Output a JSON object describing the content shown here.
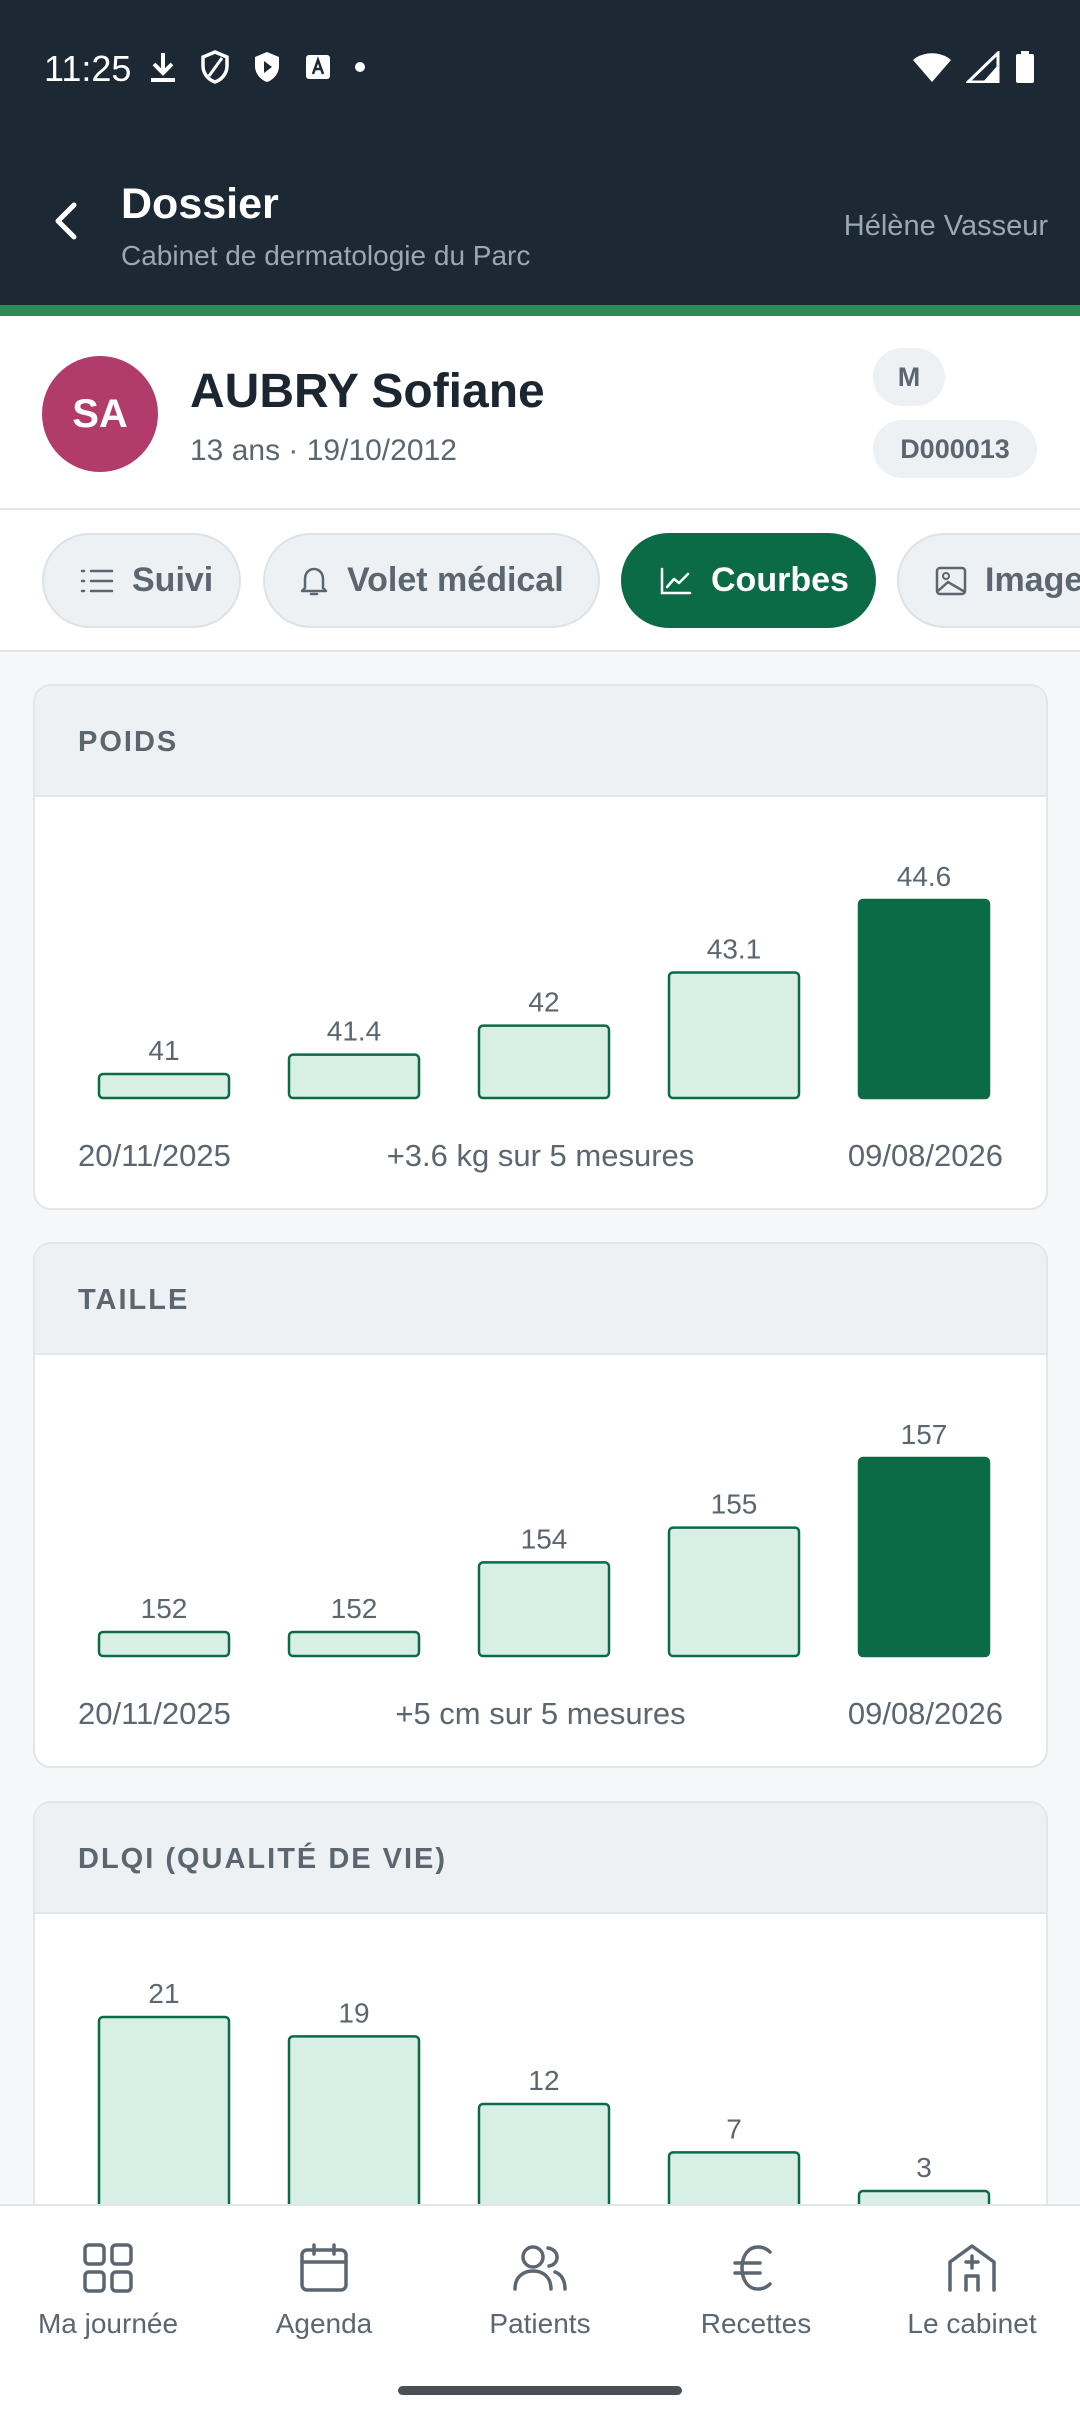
{
  "status_bar": {
    "time": "11:25"
  },
  "app_bar": {
    "title": "Dossier",
    "subtitle": "Cabinet de dermatologie du Parc",
    "user": "Hélène Vasseur"
  },
  "patient": {
    "initials": "SA",
    "name": "AUBRY Sofiane",
    "meta": "13 ans · 19/10/2012",
    "sex": "M",
    "id": "D000013",
    "avatar_color": "#b13b6b"
  },
  "tabs": [
    {
      "label": "Suivi",
      "icon": "list-icon",
      "active": false
    },
    {
      "label": "Volet médical",
      "icon": "bell-icon",
      "active": false
    },
    {
      "label": "Courbes",
      "icon": "chart-line-icon",
      "active": true
    },
    {
      "label": "Images",
      "icon": "image-icon",
      "active": false
    }
  ],
  "colors": {
    "accent": "#0b6b47",
    "bar_light": "#d8efe5",
    "bar_border": "#0b6b47"
  },
  "chart_data": [
    {
      "type": "bar",
      "title": "POIDS",
      "categories": [
        "20/11/2025",
        "",
        "",
        "",
        "09/08/2026"
      ],
      "values": [
        41,
        41.4,
        42,
        43.1,
        44.6
      ],
      "start_label": "20/11/2025",
      "summary": "+3.6 kg sur 5 mesures",
      "end_label": "09/08/2026"
    },
    {
      "type": "bar",
      "title": "TAILLE",
      "categories": [
        "20/11/2025",
        "",
        "",
        "",
        "09/08/2026"
      ],
      "values": [
        152,
        152,
        154,
        155,
        157
      ],
      "start_label": "20/11/2025",
      "summary": "+5 cm sur 5 mesures",
      "end_label": "09/08/2026"
    },
    {
      "type": "bar",
      "title": "DLQI (QUALITÉ DE VIE)",
      "values": [
        21,
        19,
        12,
        7,
        3
      ]
    }
  ],
  "bottom_nav": [
    {
      "label": "Ma journée",
      "icon": "grid-icon"
    },
    {
      "label": "Agenda",
      "icon": "calendar-icon"
    },
    {
      "label": "Patients",
      "icon": "users-icon"
    },
    {
      "label": "Recettes",
      "icon": "euro-icon"
    },
    {
      "label": "Le cabinet",
      "icon": "building-icon"
    }
  ]
}
